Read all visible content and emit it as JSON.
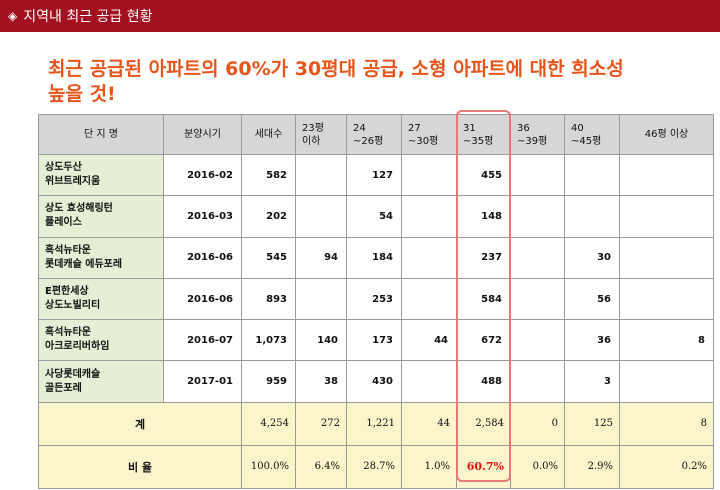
{
  "header": {
    "title": "지역내 최근 공급 현황",
    "bullet_icon": "diamond-icon"
  },
  "headline": {
    "line1": "최근 공급된 아파트의 60%가 30평대 공급, 소형 아파트에 대한 희소성",
    "line2": "높을 것!"
  },
  "table": {
    "columns": {
      "name": "단 지 명",
      "date": "분양시기",
      "households": "세대수",
      "s23": [
        "23평",
        "이하"
      ],
      "s24": [
        "24",
        "~26평"
      ],
      "s27": [
        "27",
        "~30평"
      ],
      "s31": [
        "31",
        "~35평"
      ],
      "s36": [
        "36",
        "~39평"
      ],
      "s40": [
        "40",
        "~45평"
      ],
      "s46": "46평 이상"
    },
    "rows": [
      {
        "name": [
          "상도두산",
          "위브트레지움"
        ],
        "date": "2016-02",
        "households": "582",
        "s23": "",
        "s24": "127",
        "s27": "",
        "s31": "455",
        "s36": "",
        "s40": "",
        "s46": ""
      },
      {
        "name": [
          "상도 효성해링턴",
          "플레이스"
        ],
        "date": "2016-03",
        "households": "202",
        "s23": "",
        "s24": "54",
        "s27": "",
        "s31": "148",
        "s36": "",
        "s40": "",
        "s46": ""
      },
      {
        "name": [
          "흑석뉴타운",
          "롯데캐슬 에듀포레"
        ],
        "date": "2016-06",
        "households": "545",
        "s23": "94",
        "s24": "184",
        "s27": "",
        "s31": "237",
        "s36": "",
        "s40": "30",
        "s46": ""
      },
      {
        "name": [
          "E편한세상",
          "상도노빌리티"
        ],
        "date": "2016-06",
        "households": "893",
        "s23": "",
        "s24": "253",
        "s27": "",
        "s31": "584",
        "s36": "",
        "s40": "56",
        "s46": ""
      },
      {
        "name": [
          "흑석뉴타운",
          "아크로리버하임"
        ],
        "date": "2016-07",
        "households": "1,073",
        "s23": "140",
        "s24": "173",
        "s27": "44",
        "s31": "672",
        "s36": "",
        "s40": "36",
        "s46": "8"
      },
      {
        "name": [
          "사당롯데캐슬",
          "골든포레"
        ],
        "date": "2017-01",
        "households": "959",
        "s23": "38",
        "s24": "430",
        "s27": "",
        "s31": "488",
        "s36": "",
        "s40": "3",
        "s46": ""
      }
    ],
    "total": {
      "label": "계",
      "households": "4,254",
      "s23": "272",
      "s24": "1,221",
      "s27": "44",
      "s31": "2,584",
      "s36": "0",
      "s40": "125",
      "s46": "8"
    },
    "ratio": {
      "label": "비 율",
      "households": "100.0%",
      "s23": "6.4%",
      "s24": "28.7%",
      "s27": "1.0%",
      "s31": "60.7%",
      "s36": "0.0%",
      "s40": "2.9%",
      "s46": "0.2%"
    }
  },
  "colors": {
    "header_bg": "#a3101f",
    "headline": "#e8551b",
    "name_cell_bg": "#e6efd6",
    "header_cell_bg": "#d6d6d6",
    "footer_bg": "#fbf5cc",
    "highlight": "#e87979",
    "highlight_text": "#e01010"
  }
}
